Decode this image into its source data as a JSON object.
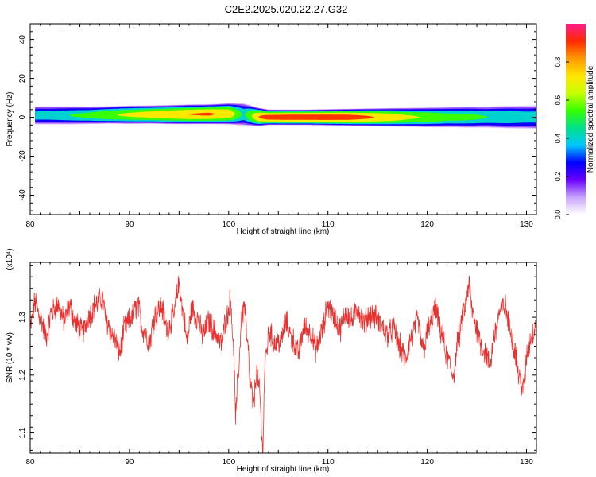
{
  "page": {
    "title": "C2E2.2025.020.22.27.G32"
  },
  "colors": {
    "snr_line": "#e8312f",
    "axis": "#000000",
    "spec_background": "#ffffff"
  },
  "colorbar": {
    "label": "Normalized spectral amplitude",
    "ticks": [
      "0.0",
      "0.2",
      "0.4",
      "0.6",
      "0.8"
    ],
    "tick_values": [
      0.0,
      0.2,
      0.4,
      0.6,
      0.8
    ],
    "range": [
      0,
      1
    ],
    "palette": [
      "#ffffff",
      "#c8a6ff",
      "#6a00ff",
      "#0000ff",
      "#00c8ff",
      "#00e08a",
      "#33ff00",
      "#c8ff00",
      "#ffe600",
      "#ff9a00",
      "#ff2a00",
      "#ff1a8c"
    ]
  },
  "chart_data": [
    {
      "type": "heatmap",
      "title": "C2E2.2025.020.22.27.G32",
      "xlabel": "Height of straight line (km)",
      "ylabel": "Frequency (Hz)",
      "xlim": [
        80,
        131
      ],
      "ylim": [
        -50,
        48
      ],
      "x_ticks": [
        "80",
        "90",
        "100",
        "110",
        "120",
        "130"
      ],
      "x_tick_values": [
        80,
        90,
        100,
        110,
        120,
        130
      ],
      "y_ticks": [
        "40",
        "20",
        "0",
        "-20",
        "-40"
      ],
      "y_tick_values": [
        40,
        20,
        0,
        -20,
        -40
      ],
      "colorbar_label": "Normalized spectral amplitude",
      "band": {
        "x": [
          80.5,
          82,
          84,
          86,
          88,
          90,
          92,
          94,
          96,
          98,
          100,
          101.5,
          103,
          104,
          106,
          108,
          110,
          112,
          114,
          116,
          118,
          120,
          122,
          124,
          126,
          128,
          130,
          131
        ],
        "center_hz": [
          1.0,
          1.0,
          1.0,
          1.0,
          1.2,
          1.3,
          1.4,
          1.4,
          1.5,
          1.6,
          1.8,
          1.5,
          0.2,
          0.0,
          0.0,
          0.0,
          0.0,
          0.0,
          0.0,
          0.0,
          0.0,
          0.0,
          0.1,
          0.1,
          0.1,
          0.1,
          0.1,
          0.1
        ],
        "half_width_hz": [
          2.6,
          2.6,
          2.6,
          2.5,
          2.5,
          2.6,
          2.6,
          2.7,
          2.8,
          2.8,
          3.0,
          3.2,
          2.6,
          2.2,
          2.2,
          2.2,
          2.3,
          2.4,
          2.5,
          2.6,
          2.7,
          2.8,
          2.9,
          3.0,
          3.0,
          3.2,
          3.3,
          3.4
        ],
        "peak_amplitude": [
          0.5,
          0.5,
          0.55,
          0.6,
          0.7,
          0.75,
          0.8,
          0.85,
          0.9,
          0.92,
          0.85,
          0.5,
          0.9,
          0.98,
          1.0,
          1.0,
          1.0,
          0.98,
          0.92,
          0.85,
          0.75,
          0.7,
          0.62,
          0.6,
          0.55,
          0.55,
          0.5,
          0.5
        ]
      }
    },
    {
      "type": "line",
      "xlabel": "Height of straight line (km)",
      "ylabel": "SNR (10 * v/v)",
      "y_scale_note": "(x10⁴)",
      "xlim": [
        80,
        131
      ],
      "ylim": [
        1.065,
        1.395
      ],
      "y_units_multiplier": 10000,
      "x_ticks": [
        "80",
        "90",
        "100",
        "110",
        "120",
        "130"
      ],
      "x_tick_values": [
        80,
        90,
        100,
        110,
        120,
        130
      ],
      "y_ticks": [
        "1.1",
        "1.2",
        "1.3"
      ],
      "y_tick_values": [
        1.1,
        1.2,
        1.3
      ],
      "series": [
        {
          "color": "#e8312f",
          "x": [
            80.0,
            80.5,
            81.0,
            81.6,
            82.2,
            82.8,
            83.4,
            84.0,
            84.6,
            85.3,
            86.0,
            86.6,
            87.2,
            87.8,
            88.4,
            89.0,
            89.6,
            90.2,
            90.8,
            91.4,
            92.0,
            92.6,
            93.2,
            93.8,
            94.4,
            95.0,
            95.4,
            95.8,
            96.3,
            96.8,
            97.4,
            98.0,
            98.6,
            99.2,
            99.8,
            100.2,
            100.5,
            100.7,
            101.0,
            101.3,
            101.6,
            101.9,
            102.2,
            102.5,
            102.8,
            103.1,
            103.4,
            103.7,
            104.1,
            104.6,
            105.2,
            105.8,
            106.4,
            107.0,
            107.6,
            108.2,
            108.8,
            109.4,
            110.0,
            110.6,
            111.2,
            111.8,
            112.4,
            113.0,
            113.6,
            114.2,
            114.8,
            115.4,
            116.0,
            116.6,
            117.2,
            117.8,
            118.4,
            119.0,
            119.6,
            120.2,
            120.8,
            121.4,
            122.0,
            122.6,
            123.2,
            123.8,
            124.2,
            124.6,
            125.0,
            125.4,
            125.8,
            126.3,
            126.8,
            127.3,
            127.8,
            128.3,
            128.8,
            129.3,
            129.7,
            130.1,
            130.5,
            131.0
          ],
          "y": [
            1.285,
            1.325,
            1.3,
            1.268,
            1.31,
            1.322,
            1.295,
            1.318,
            1.288,
            1.275,
            1.305,
            1.322,
            1.332,
            1.29,
            1.265,
            1.24,
            1.285,
            1.3,
            1.32,
            1.278,
            1.26,
            1.305,
            1.318,
            1.28,
            1.3,
            1.355,
            1.31,
            1.26,
            1.315,
            1.3,
            1.27,
            1.292,
            1.275,
            1.255,
            1.3,
            1.33,
            1.24,
            1.13,
            1.21,
            1.3,
            1.32,
            1.25,
            1.18,
            1.15,
            1.205,
            1.17,
            1.075,
            1.23,
            1.275,
            1.255,
            1.258,
            1.29,
            1.262,
            1.238,
            1.282,
            1.275,
            1.245,
            1.275,
            1.32,
            1.3,
            1.28,
            1.308,
            1.295,
            1.315,
            1.29,
            1.305,
            1.3,
            1.285,
            1.27,
            1.28,
            1.25,
            1.228,
            1.265,
            1.292,
            1.245,
            1.282,
            1.312,
            1.275,
            1.23,
            1.202,
            1.268,
            1.315,
            1.355,
            1.305,
            1.28,
            1.255,
            1.24,
            1.218,
            1.272,
            1.308,
            1.32,
            1.285,
            1.245,
            1.195,
            1.175,
            1.24,
            1.268,
            1.29
          ]
        }
      ]
    }
  ]
}
